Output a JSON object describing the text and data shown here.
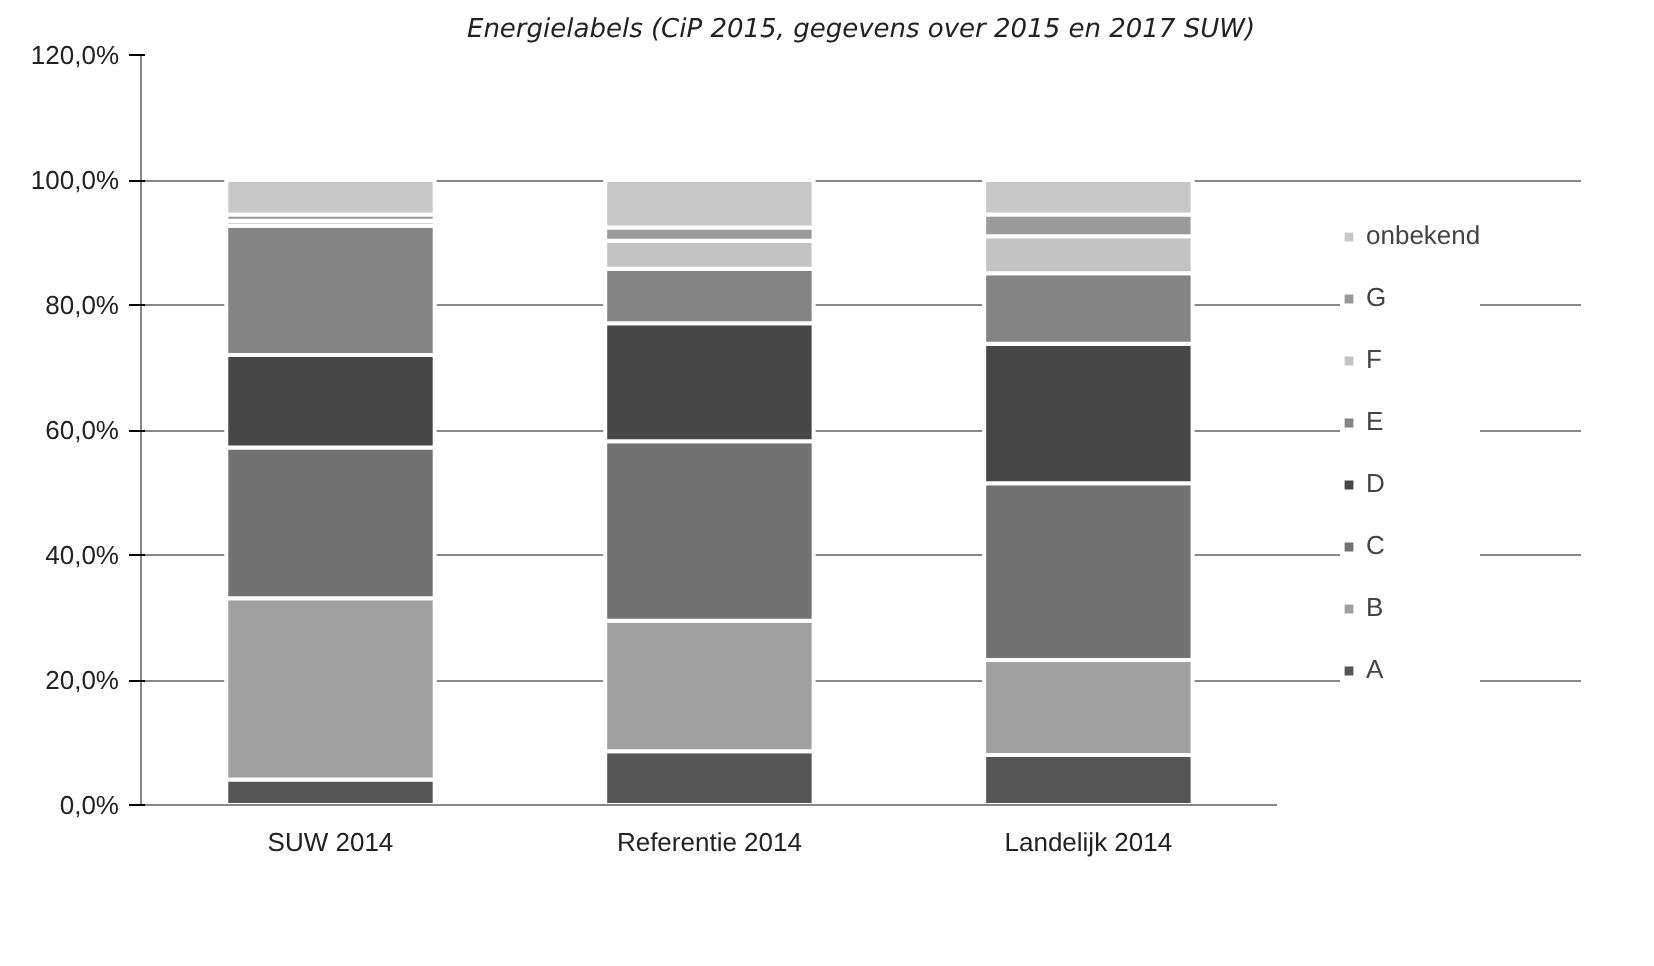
{
  "chart_data": {
    "type": "bar",
    "title": "Energielabels (CiP 2015, gegevens over 2015 en 2017 SUW)",
    "stacked": true,
    "categories": [
      "SUW 2014",
      "Referentie 2014",
      "Landelijk 2014"
    ],
    "series": [
      {
        "name": "A",
        "color": "#555555",
        "values": [
          4.1,
          8.6,
          8.0
        ]
      },
      {
        "name": "B",
        "color": "#a0a0a0",
        "values": [
          29.0,
          20.9,
          15.2
        ]
      },
      {
        "name": "C",
        "color": "#727272",
        "values": [
          24.1,
          28.7,
          28.3
        ]
      },
      {
        "name": "D",
        "color": "#474747",
        "values": [
          14.8,
          18.9,
          22.3
        ]
      },
      {
        "name": "E",
        "color": "#848484",
        "values": [
          20.7,
          8.7,
          11.3
        ]
      },
      {
        "name": "F",
        "color": "#c3c3c3",
        "values": [
          0.8,
          4.5,
          5.9
        ]
      },
      {
        "name": "G",
        "color": "#9a9a9a",
        "values": [
          1.0,
          2.1,
          3.5
        ]
      },
      {
        "name": "onbekend",
        "color": "#c8c8c8",
        "values": [
          5.5,
          7.6,
          5.5
        ]
      }
    ],
    "ylim": [
      0,
      120
    ],
    "yticks": [
      {
        "value": 0,
        "label": "0,0%"
      },
      {
        "value": 20,
        "label": "20,0%"
      },
      {
        "value": 40,
        "label": "40,0%"
      },
      {
        "value": 60,
        "label": "60,0%"
      },
      {
        "value": 80,
        "label": "80,0%"
      },
      {
        "value": 100,
        "label": "100,0%"
      },
      {
        "value": 120,
        "label": "120,0%"
      }
    ],
    "grid": "y",
    "legend": "right"
  }
}
